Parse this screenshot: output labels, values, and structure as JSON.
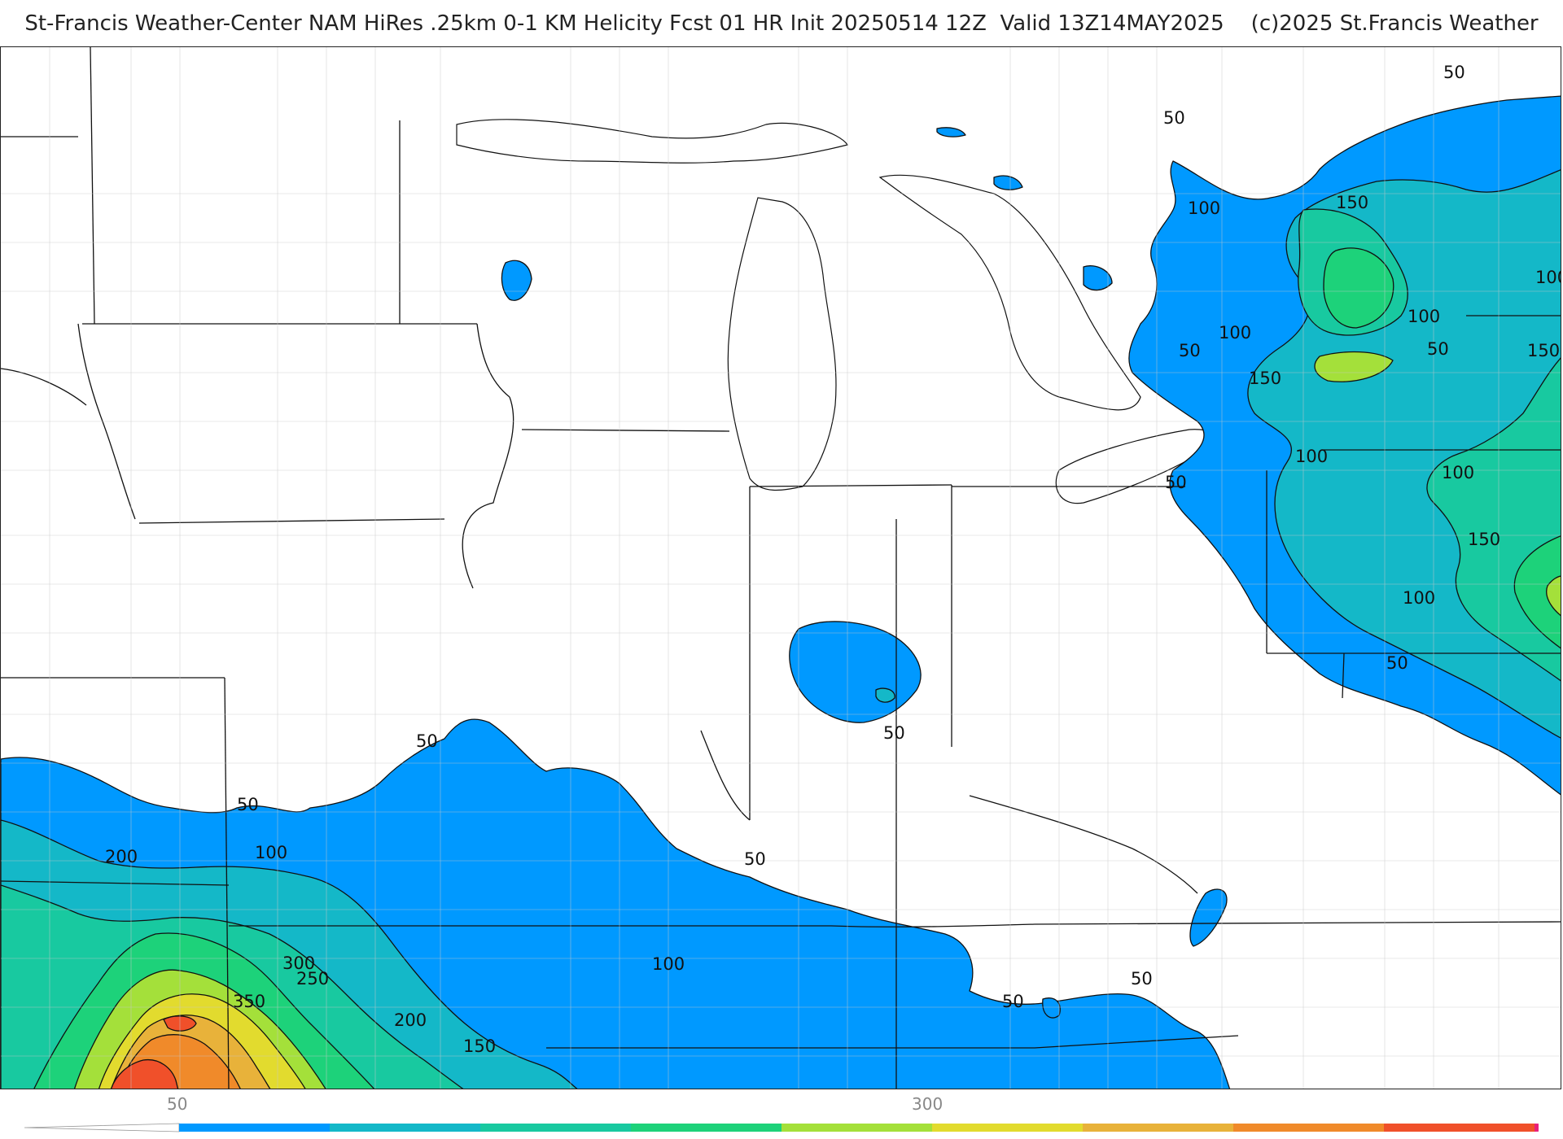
{
  "title": "St-Francis Weather-Center NAM HiRes .25km 0-1 KM Helicity Fcst 01 HR Init 20250514 12Z  Valid 13Z14MAY2025    (c)2025 St.Francis Weather",
  "colors": {
    "c50": "#0099ff",
    "c100": "#14b8c8",
    "c150": "#18c9a0",
    "c200": "#1dd27a",
    "c250": "#a4e03a",
    "c300": "#e2db2e",
    "c350": "#e8b23a",
    "c400": "#f08a2a",
    "c450": "#f0502a",
    "c500": "#e81f7a",
    "land_fill": "#ffffff",
    "boundary": "#000000"
  },
  "contour_labels": [
    "50",
    "50",
    "50",
    "50",
    "50",
    "50",
    "50",
    "50",
    "50",
    "50",
    "50",
    "50",
    "100",
    "100",
    "100",
    "100",
    "100",
    "100",
    "100",
    "100",
    "100",
    "150",
    "150",
    "150",
    "150",
    "150",
    "200",
    "200",
    "250",
    "300",
    "350"
  ],
  "colorbar": {
    "tick_labels": [
      "50",
      "300"
    ],
    "segments": [
      "#0099ff",
      "#14b8c8",
      "#18c9a0",
      "#1dd27a",
      "#a4e03a",
      "#e2db2e",
      "#e8b23a",
      "#f08a2a",
      "#f0502a",
      "#e81f7a"
    ]
  }
}
